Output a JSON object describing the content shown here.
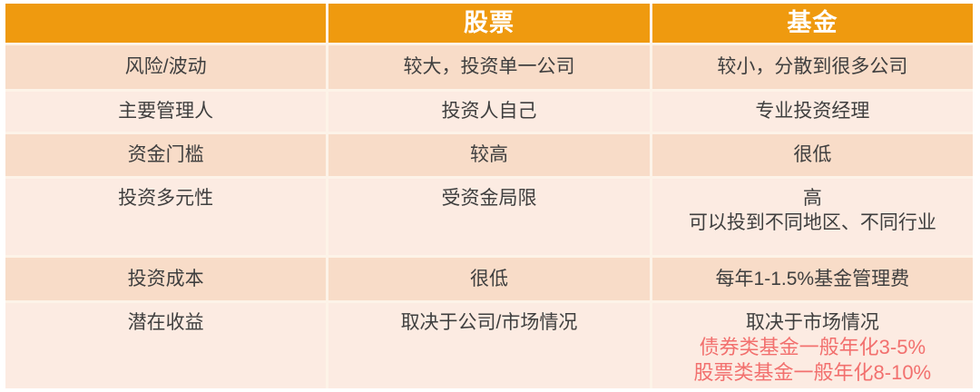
{
  "chart_data": {
    "type": "table",
    "title": "",
    "columns": [
      "",
      "股票",
      "基金"
    ],
    "rows": [
      [
        "风险/波动",
        "较大，投资单一公司",
        "较小，分散到很多公司"
      ],
      [
        "主要管理人",
        "投资人自己",
        "专业投资经理"
      ],
      [
        "资金门槛",
        "较高",
        "很低"
      ],
      [
        "投资多元性",
        "受资金局限",
        "高\n可以投到不同地区、不同行业"
      ],
      [
        "投资成本",
        "很低",
        "每年1-1.5%基金管理费"
      ],
      [
        "潜在收益",
        "取决于公司/市场情况",
        "取决于市场情况\n债券类基金一般年化3-5%\n股票类基金一般年化8-10%"
      ]
    ],
    "layout_hints": {
      "header_fill": "#EF9A0F",
      "row_fill_odd": "#F8DCC8",
      "row_fill_even": "#FCEBE2",
      "highlight_rows_note": "last row fund column lines 2-3 in coral red"
    }
  },
  "table": {
    "header": {
      "col1": "",
      "col2": "股票",
      "col3": "基金"
    },
    "rows": [
      {
        "label": "风险/波动",
        "stock": "较大，投资单一公司",
        "fund": "较小，分散到很多公司"
      },
      {
        "label": "主要管理人",
        "stock": "投资人自己",
        "fund": "专业投资经理"
      },
      {
        "label": "资金门槛",
        "stock": "较高",
        "fund": "很低"
      },
      {
        "label": "投资多元性",
        "stock": "受资金局限",
        "fund_line1": "高",
        "fund_line2": "可以投到不同地区、不同行业"
      },
      {
        "label": "投资成本",
        "stock": "很低",
        "fund": "每年1-1.5%基金管理费"
      },
      {
        "label": "潜在收益",
        "stock": "取决于公司/市场情况",
        "fund": "取决于市场情况",
        "fund_highlight1": "债券类基金一般年化3-5%",
        "fund_highlight2": "股票类基金一般年化8-10%"
      }
    ],
    "colors": {
      "header_bg": "#EF9A0F",
      "header_text": "#FFFFFF",
      "row_dark": "#F8DCC8",
      "row_light": "#FCEBE2",
      "body_text": "#3F3F3F",
      "highlight_text": "#F2706E",
      "gap_line": "#FDF3E8"
    }
  }
}
